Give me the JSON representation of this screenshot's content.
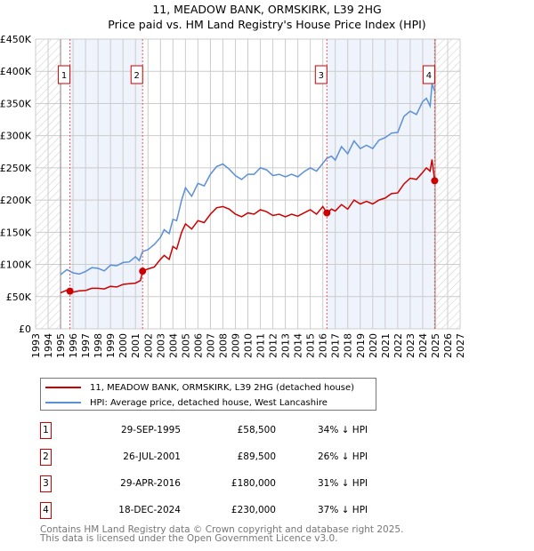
{
  "title_line1": "11, MEADOW BANK, ORMSKIRK, L39 2HG",
  "title_line2": "Price paid vs. HM Land Registry's House Price Index (HPI)",
  "colors": {
    "property": "#cc0000",
    "hpi": "#5b8fd6",
    "shade": "#eef3fc",
    "marker_border": "#cc0000"
  },
  "chart_data": {
    "type": "line",
    "title": "11, MEADOW BANK, ORMSKIRK, L39 2HG — Price paid vs. HM Land Registry's House Price Index (HPI)",
    "xlim": [
      1993,
      2027
    ],
    "ylim": [
      0,
      450000
    ],
    "grid": true,
    "x_ticks": [
      "1993",
      "1994",
      "1995",
      "1996",
      "1997",
      "1998",
      "1999",
      "2000",
      "2001",
      "2002",
      "2003",
      "2004",
      "2005",
      "2006",
      "2007",
      "2008",
      "2009",
      "2010",
      "2011",
      "2012",
      "2013",
      "2014",
      "2015",
      "2016",
      "2017",
      "2018",
      "2019",
      "2020",
      "2021",
      "2022",
      "2023",
      "2024",
      "2025",
      "2026",
      "2027"
    ],
    "y_ticks": [
      {
        "v": 0,
        "label": "£0"
      },
      {
        "v": 50000,
        "label": "£50K"
      },
      {
        "v": 100000,
        "label": "£100K"
      },
      {
        "v": 150000,
        "label": "£150K"
      },
      {
        "v": 200000,
        "label": "£200K"
      },
      {
        "v": 250000,
        "label": "£250K"
      },
      {
        "v": 300000,
        "label": "£300K"
      },
      {
        "v": 350000,
        "label": "£350K"
      },
      {
        "v": 400000,
        "label": "£400K"
      },
      {
        "v": 450000,
        "label": "£450K"
      }
    ],
    "hatched_ranges": [
      [
        1993,
        1995
      ],
      [
        2025,
        2027
      ]
    ],
    "shaded_ranges": [
      [
        1995.75,
        2001.57
      ],
      [
        2016.33,
        2024.96
      ]
    ],
    "series": [
      {
        "name": "11, MEADOW BANK, ORMSKIRK, L39 2HG (detached house)",
        "color": "#cc0000",
        "x": [
          1995,
          1995.5,
          1996,
          1996.5,
          1997,
          1997.5,
          1998,
          1998.5,
          1999,
          1999.5,
          2000,
          2000.5,
          2001,
          2001.4,
          2001.57,
          2002,
          2002.5,
          2003,
          2003.3,
          2003.7,
          2004,
          2004.3,
          2004.7,
          2005,
          2005.5,
          2006,
          2006.5,
          2007,
          2007.5,
          2008,
          2008.5,
          2009,
          2009.5,
          2010,
          2010.5,
          2011,
          2011.5,
          2012,
          2012.5,
          2013,
          2013.5,
          2014,
          2014.5,
          2015,
          2015.5,
          2016,
          2016.33,
          2016.7,
          2017,
          2017.5,
          2018,
          2018.5,
          2019,
          2019.5,
          2020,
          2020.5,
          2021,
          2021.5,
          2022,
          2022.5,
          2023,
          2023.5,
          2024,
          2024.3,
          2024.6,
          2024.75,
          2024.96
        ],
        "y": [
          56000,
          60000,
          57000,
          59000,
          59500,
          63000,
          63000,
          62000,
          66000,
          65000,
          69000,
          70000,
          71000,
          75000,
          89500,
          93000,
          96000,
          108000,
          114000,
          108000,
          128000,
          124000,
          150000,
          163000,
          155000,
          168000,
          165000,
          178000,
          188000,
          190000,
          186000,
          178000,
          174000,
          180000,
          178000,
          185000,
          182000,
          176000,
          178000,
          174000,
          178000,
          175000,
          180000,
          185000,
          178000,
          190000,
          180000,
          186000,
          183000,
          193000,
          186000,
          200000,
          194000,
          198000,
          194000,
          200000,
          203000,
          210000,
          211000,
          225000,
          234000,
          232000,
          243000,
          250000,
          245000,
          263000,
          230000
        ]
      },
      {
        "name": "HPI: Average price, detached house, West Lancashire",
        "color": "#5b8fd6",
        "x": [
          1995,
          1995.5,
          1996,
          1996.5,
          1997,
          1997.5,
          1998,
          1998.5,
          1999,
          1999.5,
          2000,
          2000.5,
          2001,
          2001.3,
          2001.57,
          2002,
          2002.5,
          2003,
          2003.3,
          2003.7,
          2004,
          2004.3,
          2004.7,
          2005,
          2005.5,
          2006,
          2006.5,
          2007,
          2007.5,
          2008,
          2008.5,
          2009,
          2009.5,
          2010,
          2010.5,
          2011,
          2011.5,
          2012,
          2012.5,
          2013,
          2013.5,
          2014,
          2014.5,
          2015,
          2015.5,
          2016,
          2016.33,
          2016.7,
          2017,
          2017.5,
          2018,
          2018.5,
          2019,
          2019.5,
          2020,
          2020.5,
          2021,
          2021.5,
          2022,
          2022.5,
          2023,
          2023.5,
          2024,
          2024.3,
          2024.6,
          2024.75,
          2025
        ],
        "y": [
          84000,
          92000,
          87000,
          85000,
          89000,
          95000,
          94000,
          90000,
          99000,
          98000,
          103000,
          104000,
          112000,
          106000,
          120000,
          123000,
          131000,
          142000,
          154000,
          148000,
          170000,
          168000,
          200000,
          219000,
          206000,
          226000,
          222000,
          240000,
          252000,
          256000,
          248000,
          238000,
          232000,
          240000,
          240000,
          250000,
          247000,
          238000,
          240000,
          236000,
          240000,
          236000,
          244000,
          250000,
          245000,
          257000,
          265000,
          268000,
          262000,
          283000,
          272000,
          292000,
          280000,
          285000,
          280000,
          293000,
          297000,
          304000,
          305000,
          330000,
          338000,
          333000,
          353000,
          358000,
          346000,
          380000,
          368000
        ]
      }
    ],
    "sales": [
      {
        "label": "1",
        "x": 1995.75,
        "y": 58500
      },
      {
        "label": "2",
        "x": 2001.57,
        "y": 89500
      },
      {
        "label": "3",
        "x": 2016.33,
        "y": 180000
      },
      {
        "label": "4",
        "x": 2024.96,
        "y": 230000
      }
    ]
  },
  "legend": {
    "property": "11, MEADOW BANK, ORMSKIRK, L39 2HG (detached house)",
    "hpi": "HPI: Average price, detached house, West Lancashire"
  },
  "transactions": [
    {
      "num": "1",
      "date": "29-SEP-1995",
      "price": "£58,500",
      "hpi": "34% ↓ HPI"
    },
    {
      "num": "2",
      "date": "26-JUL-2001",
      "price": "£89,500",
      "hpi": "26% ↓ HPI"
    },
    {
      "num": "3",
      "date": "29-APR-2016",
      "price": "£180,000",
      "hpi": "31% ↓ HPI"
    },
    {
      "num": "4",
      "date": "18-DEC-2024",
      "price": "£230,000",
      "hpi": "37% ↓ HPI"
    }
  ],
  "footer": {
    "line1": "Contains HM Land Registry data © Crown copyright and database right 2025.",
    "line2": "This data is licensed under the Open Government Licence v3.0."
  }
}
